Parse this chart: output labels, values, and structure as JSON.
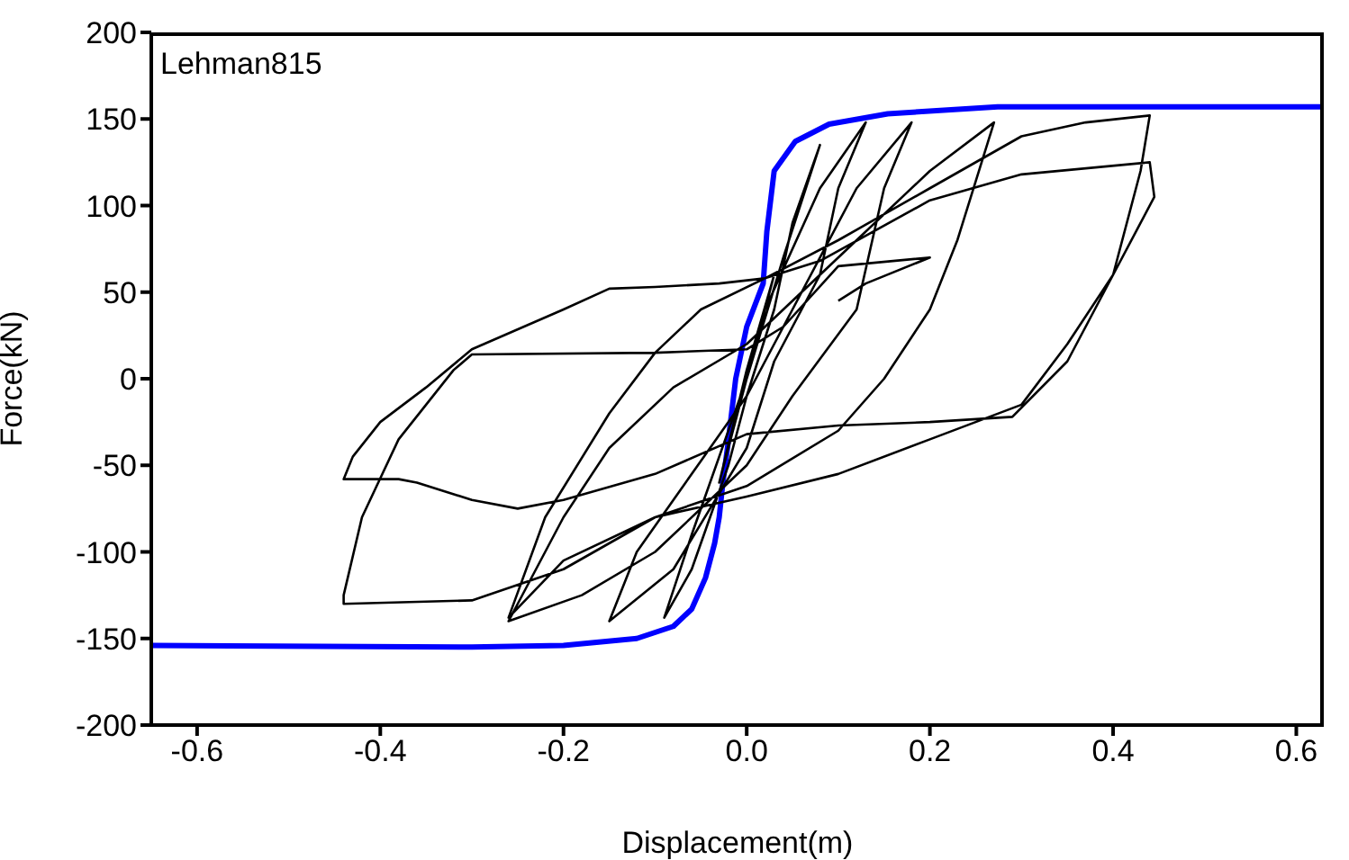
{
  "chart_data": {
    "type": "line",
    "xlabel": "Displacement(m)",
    "ylabel": "Force(kN)",
    "annotations": [
      "Lehman815"
    ],
    "xlim": [
      -0.65,
      0.63
    ],
    "xticks": [
      -0.6,
      -0.4,
      -0.2,
      {
        "value": 0,
        "label": "0.0"
      },
      0.2,
      0.4,
      0.6
    ],
    "ylim": [
      -200,
      200
    ],
    "yticks": [
      -200,
      -150,
      -100,
      -50,
      0,
      50,
      100,
      150,
      200
    ],
    "grid": false,
    "marker": "none",
    "line_style": "solid",
    "series": [
      {
        "color": "#0000ff",
        "x": [
          -0.65,
          -0.3,
          -0.2,
          -0.12,
          -0.08,
          -0.06,
          -0.045,
          -0.035,
          -0.03,
          -0.026,
          -0.021,
          -0.012,
          0.0,
          0.018,
          0.022,
          0.03,
          0.053,
          0.09,
          0.154,
          0.274,
          0.63
        ],
        "values": [
          -154,
          -155,
          -154,
          -150,
          -143,
          -133,
          -115,
          -95,
          -80,
          -60,
          -40,
          0,
          30,
          55,
          85,
          120,
          137,
          147,
          153,
          157,
          157
        ]
      },
      {
        "color": "#000000",
        "x": [
          0.0,
          0.03,
          0.0,
          -0.03,
          0.0,
          0.04,
          0.08,
          0.05,
          0.03,
          0.0,
          -0.02,
          -0.06,
          -0.09,
          -0.06,
          -0.04,
          0.0,
          0.02,
          0.08,
          0.13,
          0.1,
          0.08,
          0.03,
          0.0,
          -0.08,
          -0.15,
          -0.12,
          -0.08,
          0.0,
          0.05,
          0.12,
          0.18,
          0.15,
          0.12,
          0.05,
          0.0,
          -0.1,
          -0.18,
          -0.26,
          -0.2,
          -0.15,
          -0.08,
          0.0,
          0.06,
          0.12,
          0.2,
          0.27,
          0.23,
          0.2,
          0.15,
          0.1,
          0.0,
          -0.1,
          -0.2,
          -0.26,
          -0.22,
          -0.15,
          -0.1,
          -0.05,
          0.02,
          0.1,
          0.2,
          0.3,
          0.37,
          0.44,
          0.43,
          0.4,
          0.35,
          0.29,
          0.2,
          0.1,
          0.0,
          -0.1,
          -0.2,
          -0.25,
          -0.3,
          -0.36,
          -0.38,
          -0.44,
          -0.43,
          -0.4,
          -0.35,
          -0.3,
          -0.2,
          -0.15,
          -0.1,
          -0.03,
          0.02,
          0.08,
          0.2,
          0.3,
          0.44,
          0.445,
          0.4,
          0.35,
          0.3,
          0.2,
          0.1,
          0.0,
          -0.1,
          -0.2,
          -0.3,
          -0.44,
          -0.44,
          -0.42,
          -0.38,
          -0.32,
          -0.3,
          -0.1,
          0.0,
          0.04,
          0.1,
          0.2,
          0.13,
          0.1
        ],
        "values": [
          0,
          60,
          5,
          -60,
          0,
          70,
          135,
          90,
          40,
          -10,
          -50,
          -110,
          -138,
          -90,
          -60,
          0,
          40,
          110,
          148,
          110,
          60,
          10,
          -40,
          -110,
          -140,
          -100,
          -70,
          -10,
          40,
          110,
          148,
          110,
          40,
          -10,
          -50,
          -100,
          -125,
          -140,
          -80,
          -40,
          -5,
          20,
          50,
          80,
          120,
          148,
          80,
          40,
          0,
          -30,
          -62,
          -80,
          -105,
          -138,
          -80,
          -20,
          15,
          40,
          58,
          80,
          110,
          140,
          148,
          152,
          120,
          60,
          10,
          -22,
          -25,
          -27,
          -32,
          -55,
          -70,
          -75,
          -70,
          -60,
          -58,
          -58,
          -45,
          -25,
          -5,
          17,
          40,
          52,
          53,
          55,
          58,
          68,
          103,
          118,
          125,
          105,
          60,
          20,
          -15,
          -35,
          -55,
          -68,
          -80,
          -110,
          -128,
          -130,
          -125,
          -80,
          -35,
          5,
          14,
          15,
          17,
          30,
          65,
          70,
          55,
          45
        ]
      }
    ]
  }
}
